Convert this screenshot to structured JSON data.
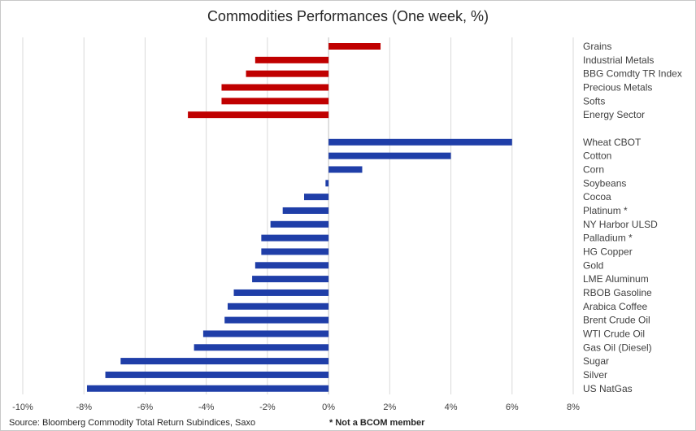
{
  "chart_data": {
    "type": "bar",
    "orientation": "horizontal",
    "title": "Commodities Performances (One week, %)",
    "xlim": [
      -10,
      8
    ],
    "x_ticks": [
      "-10%",
      "-8%",
      "-6%",
      "-4%",
      "-2%",
      "0%",
      "2%",
      "4%",
      "6%",
      "8%"
    ],
    "grid": "vertical",
    "colors": {
      "sector": "#c00000",
      "commodity": "#1f3ea8",
      "grid": "#d9d9d9",
      "axis": "#bfbfbf"
    },
    "series": [
      {
        "group": "sector",
        "categories": [
          "Grains",
          "Industrial Metals",
          "BBG Comdty TR Index",
          "Precious Metals",
          "Softs",
          "Energy Sector"
        ],
        "values": [
          1.7,
          -2.4,
          -2.7,
          -3.5,
          -3.5,
          -4.6
        ]
      },
      {
        "group": "commodity",
        "categories": [
          "Wheat CBOT",
          "Cotton",
          "Corn",
          "Soybeans",
          "Cocoa",
          "Platinum *",
          "NY Harbor ULSD",
          "Palladium *",
          "HG Copper",
          "Gold",
          "LME Aluminum",
          "RBOB Gasoline",
          "Arabica Coffee",
          "Brent Crude Oil",
          "WTI Crude Oil",
          "Gas Oil (Diesel)",
          "Sugar",
          "Silver",
          "US NatGas"
        ],
        "values": [
          6.0,
          4.0,
          1.1,
          -0.1,
          -0.8,
          -1.5,
          -1.9,
          -2.2,
          -2.2,
          -2.4,
          -2.5,
          -3.1,
          -3.3,
          -3.4,
          -4.1,
          -4.4,
          -6.8,
          -7.3,
          -7.9
        ]
      }
    ]
  },
  "source": "Source: Bloomberg Commodity Total Return Subindices, Saxo",
  "footnote": "* Not a BCOM member"
}
